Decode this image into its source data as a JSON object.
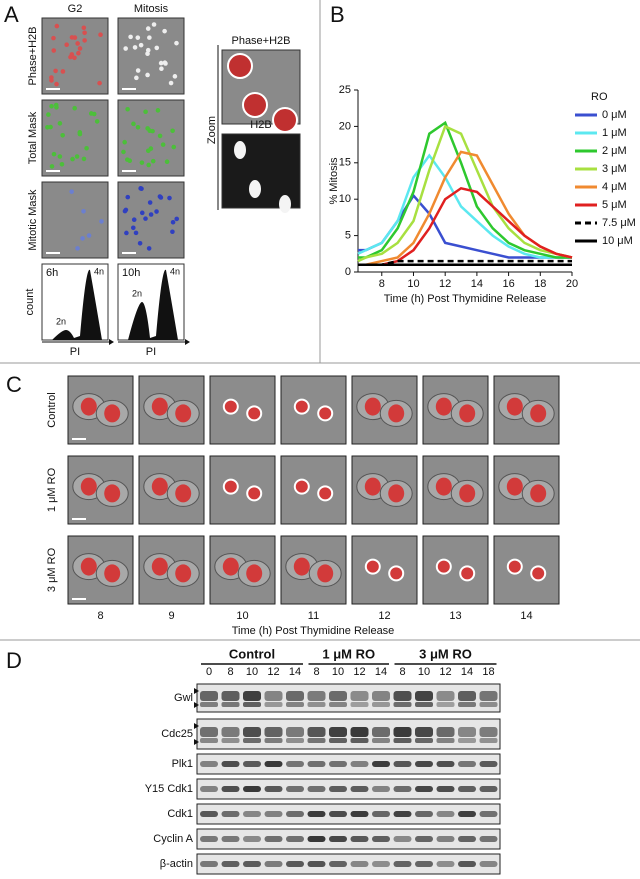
{
  "chart_data": {
    "type": "line",
    "x": [
      6.5,
      7,
      8,
      9,
      10,
      11,
      12,
      13,
      14,
      15,
      16,
      17,
      18,
      19,
      20
    ],
    "xlim": [
      6.5,
      20
    ],
    "xticks": [
      8,
      10,
      12,
      14,
      16,
      18,
      20
    ],
    "ylim": [
      0,
      25
    ],
    "yticks": [
      0,
      5,
      10,
      15,
      20,
      25
    ],
    "xlabel": "Time (h) Post Thymidine Release",
    "ylabel": "% Mitosis",
    "legend_title": "RO",
    "legend": "right",
    "series": [
      {
        "name": "0 μM",
        "color": "#3a4fd0",
        "style": "solid",
        "values": [
          3,
          3,
          4,
          7,
          10.5,
          8,
          4,
          3.5,
          3,
          2.5,
          2,
          2,
          2,
          2,
          2
        ]
      },
      {
        "name": "1 μM",
        "color": "#5ce8f0",
        "style": "solid",
        "values": [
          2.5,
          3,
          4,
          7,
          13,
          16,
          13,
          9,
          7,
          5,
          3.5,
          2.5,
          2,
          2,
          2
        ]
      },
      {
        "name": "2 μM",
        "color": "#2ec82e",
        "style": "solid",
        "values": [
          2,
          2,
          3,
          6,
          11,
          19,
          20.5,
          15,
          9,
          6,
          4,
          3,
          2.5,
          2,
          2
        ]
      },
      {
        "name": "3 μM",
        "color": "#a8e040",
        "style": "solid",
        "values": [
          1.5,
          2,
          2.5,
          4,
          7,
          14,
          20,
          19,
          14,
          9,
          6,
          4,
          3,
          2.5,
          2
        ]
      },
      {
        "name": "4 μM",
        "color": "#f08a30",
        "style": "solid",
        "values": [
          1,
          1,
          1.5,
          2,
          4,
          8,
          13,
          16.5,
          16,
          12,
          8,
          5,
          3.5,
          2.5,
          2
        ]
      },
      {
        "name": "5 μM",
        "color": "#e02020",
        "style": "solid",
        "values": [
          1,
          1,
          1,
          1.5,
          3,
          6,
          10,
          11.5,
          11,
          9,
          7,
          5,
          3.5,
          2.5,
          2
        ]
      },
      {
        "name": "7.5 μM",
        "color": "#000000",
        "style": "dashed",
        "values": [
          1,
          1,
          1,
          1.5,
          1.5,
          1.5,
          1.5,
          1.5,
          1.5,
          1.5,
          1.5,
          1.5,
          1.5,
          1.5,
          1.5
        ]
      },
      {
        "name": "10 μM",
        "color": "#000000",
        "style": "solid",
        "values": [
          1,
          1,
          1,
          1,
          1,
          1,
          1,
          1,
          1,
          1,
          1,
          1,
          1,
          1,
          1
        ]
      }
    ]
  },
  "panel_a": {
    "letter": "A",
    "columns": [
      "G2",
      "Mitosis"
    ],
    "rows": [
      "Phase+H2B",
      "Total Mask",
      "Mitotic Mask"
    ],
    "ylabel": "count",
    "histograms": [
      {
        "time": "6h",
        "low": "2n",
        "high": "4n",
        "xlabel": "PI"
      },
      {
        "time": "10h",
        "low": "2n",
        "high": "4n",
        "xlabel": "PI"
      }
    ],
    "zoom": {
      "label": "Zoom",
      "panels": [
        "Phase+H2B",
        "H2B"
      ]
    }
  },
  "panel_b": {
    "letter": "B"
  },
  "panel_c": {
    "letter": "C",
    "rows": [
      "Control",
      "1 μM RO",
      "3 μM RO"
    ],
    "columns": [
      "8",
      "9",
      "10",
      "11",
      "12",
      "13",
      "14"
    ],
    "xlabel": "Time (h) Post Thymidine Release"
  },
  "panel_d": {
    "letter": "D",
    "groups": [
      {
        "name": "Control",
        "lanes": [
          "0",
          "8",
          "10",
          "12",
          "14"
        ]
      },
      {
        "name": "1 μM RO",
        "lanes": [
          "8",
          "10",
          "12",
          "14"
        ]
      },
      {
        "name": "3 μM RO",
        "lanes": [
          "8",
          "10",
          "12",
          "14",
          "18"
        ]
      }
    ],
    "rows": [
      "Gwl",
      "Cdc25",
      "Plk1",
      "Y15 Cdk1",
      "Cdk1",
      "Cyclin A",
      "β-actin"
    ]
  }
}
